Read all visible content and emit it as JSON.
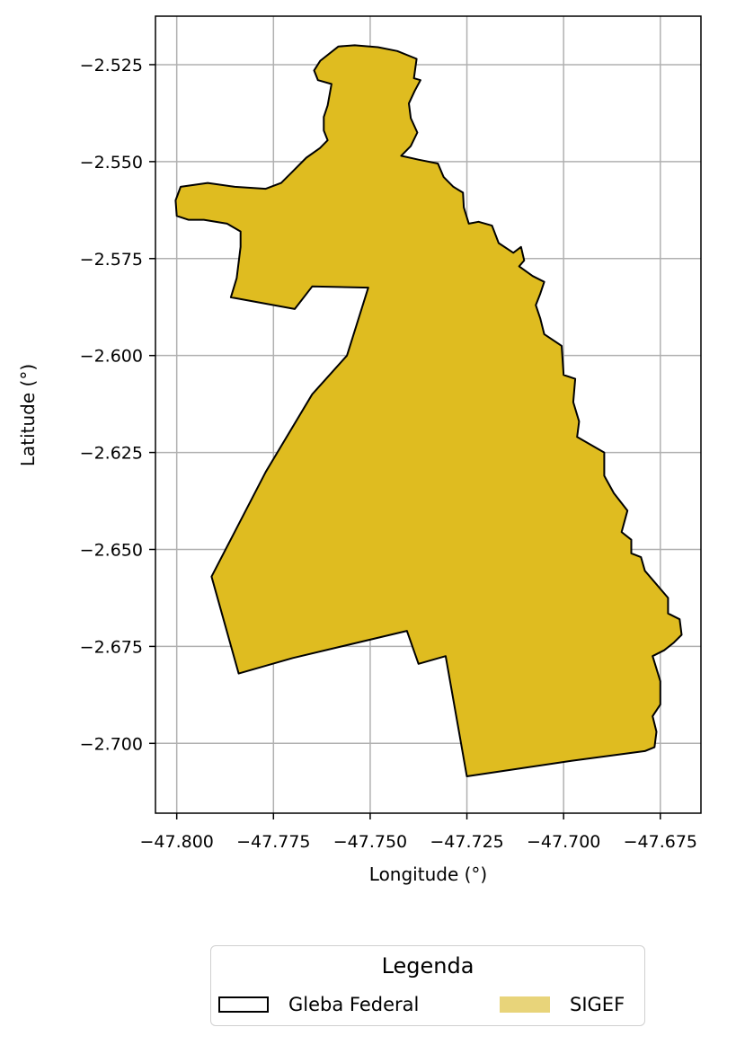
{
  "chart_data": {
    "type": "map",
    "xlabel": "Longitude (°)",
    "ylabel": "Latitude (°)",
    "xlim": [
      -47.8055,
      -47.6645
    ],
    "ylim": [
      -2.718,
      -2.5125
    ],
    "grid": true,
    "x_ticks": [
      {
        "value": -47.8,
        "label": "−47.800"
      },
      {
        "value": -47.775,
        "label": "−47.775"
      },
      {
        "value": -47.75,
        "label": "−47.750"
      },
      {
        "value": -47.725,
        "label": "−47.725"
      },
      {
        "value": -47.7,
        "label": "−47.700"
      },
      {
        "value": -47.675,
        "label": "−47.675"
      }
    ],
    "y_ticks": [
      {
        "value": -2.525,
        "label": "−2.525"
      },
      {
        "value": -2.55,
        "label": "−2.550"
      },
      {
        "value": -2.575,
        "label": "−2.575"
      },
      {
        "value": -2.6,
        "label": "−2.600"
      },
      {
        "value": -2.625,
        "label": "−2.625"
      },
      {
        "value": -2.65,
        "label": "−2.650"
      },
      {
        "value": -2.675,
        "label": "−2.675"
      },
      {
        "value": -2.7,
        "label": "−2.700"
      }
    ],
    "polygon": {
      "fill": "#dfbc20",
      "edge": "#000000",
      "coords": [
        [
          -47.7629,
          -2.524
        ],
        [
          -47.7582,
          -2.5203
        ],
        [
          -47.754,
          -2.52
        ],
        [
          -47.748,
          -2.5205
        ],
        [
          -47.743,
          -2.5215
        ],
        [
          -47.738,
          -2.5235
        ],
        [
          -47.7387,
          -2.5285
        ],
        [
          -47.737,
          -2.529
        ],
        [
          -47.7385,
          -2.5318
        ],
        [
          -47.74,
          -2.535
        ],
        [
          -47.7395,
          -2.5388
        ],
        [
          -47.7378,
          -2.5425
        ],
        [
          -47.7395,
          -2.546
        ],
        [
          -47.742,
          -2.5485
        ],
        [
          -47.7375,
          -2.5495
        ],
        [
          -47.7325,
          -2.5505
        ],
        [
          -47.731,
          -2.554
        ],
        [
          -47.7285,
          -2.5565
        ],
        [
          -47.726,
          -2.558
        ],
        [
          -47.7258,
          -2.5618
        ],
        [
          -47.7245,
          -2.566
        ],
        [
          -47.722,
          -2.5655
        ],
        [
          -47.7185,
          -2.5665
        ],
        [
          -47.7168,
          -2.571
        ],
        [
          -47.713,
          -2.5735
        ],
        [
          -47.711,
          -2.572
        ],
        [
          -47.7102,
          -2.5755
        ],
        [
          -47.7115,
          -2.577
        ],
        [
          -47.708,
          -2.5795
        ],
        [
          -47.705,
          -2.581
        ],
        [
          -47.706,
          -2.584
        ],
        [
          -47.7072,
          -2.587
        ],
        [
          -47.706,
          -2.5905
        ],
        [
          -47.705,
          -2.5945
        ],
        [
          -47.7005,
          -2.5975
        ],
        [
          -47.7,
          -2.605
        ],
        [
          -47.697,
          -2.606
        ],
        [
          -47.6975,
          -2.612
        ],
        [
          -47.696,
          -2.617
        ],
        [
          -47.6965,
          -2.621
        ],
        [
          -47.6895,
          -2.625
        ],
        [
          -47.6895,
          -2.631
        ],
        [
          -47.687,
          -2.6355
        ],
        [
          -47.6835,
          -2.64
        ],
        [
          -47.685,
          -2.6455
        ],
        [
          -47.6825,
          -2.6475
        ],
        [
          -47.6825,
          -2.651
        ],
        [
          -47.68,
          -2.652
        ],
        [
          -47.679,
          -2.6555
        ],
        [
          -47.673,
          -2.6625
        ],
        [
          -47.673,
          -2.6665
        ],
        [
          -47.67,
          -2.668
        ],
        [
          -47.6695,
          -2.672
        ],
        [
          -47.6715,
          -2.674
        ],
        [
          -47.674,
          -2.676
        ],
        [
          -47.677,
          -2.6775
        ],
        [
          -47.675,
          -2.684
        ],
        [
          -47.675,
          -2.69
        ],
        [
          -47.677,
          -2.693
        ],
        [
          -47.676,
          -2.697
        ],
        [
          -47.6765,
          -2.701
        ],
        [
          -47.679,
          -2.702
        ],
        [
          -47.698,
          -2.7045
        ],
        [
          -47.725,
          -2.7085
        ],
        [
          -47.7305,
          -2.6775
        ],
        [
          -47.7375,
          -2.6795
        ],
        [
          -47.7405,
          -2.671
        ],
        [
          -47.77,
          -2.678
        ],
        [
          -47.784,
          -2.682
        ],
        [
          -47.791,
          -2.657
        ],
        [
          -47.777,
          -2.63
        ],
        [
          -47.765,
          -2.61
        ],
        [
          -47.756,
          -2.6
        ],
        [
          -47.7505,
          -2.5825
        ],
        [
          -47.765,
          -2.5822
        ],
        [
          -47.7695,
          -2.588
        ],
        [
          -47.786,
          -2.585
        ],
        [
          -47.7845,
          -2.58
        ],
        [
          -47.7835,
          -2.572
        ],
        [
          -47.7835,
          -2.568
        ],
        [
          -47.787,
          -2.566
        ],
        [
          -47.793,
          -2.565
        ],
        [
          -47.797,
          -2.565
        ],
        [
          -47.8,
          -2.564
        ],
        [
          -47.8003,
          -2.56
        ],
        [
          -47.799,
          -2.5565
        ],
        [
          -47.792,
          -2.5555
        ],
        [
          -47.785,
          -2.5565
        ],
        [
          -47.777,
          -2.557
        ],
        [
          -47.773,
          -2.5555
        ],
        [
          -47.77,
          -2.5525
        ],
        [
          -47.7665,
          -2.549
        ],
        [
          -47.763,
          -2.5465
        ],
        [
          -47.761,
          -2.5445
        ],
        [
          -47.762,
          -2.542
        ],
        [
          -47.762,
          -2.5385
        ],
        [
          -47.761,
          -2.5355
        ],
        [
          -47.76,
          -2.53
        ],
        [
          -47.7635,
          -2.529
        ],
        [
          -47.7645,
          -2.5265
        ]
      ]
    }
  },
  "legend": {
    "title": "Legenda",
    "items": [
      {
        "label": "Gleba Federal"
      },
      {
        "label": "SIGEF",
        "color": "#e8d47a"
      }
    ]
  }
}
